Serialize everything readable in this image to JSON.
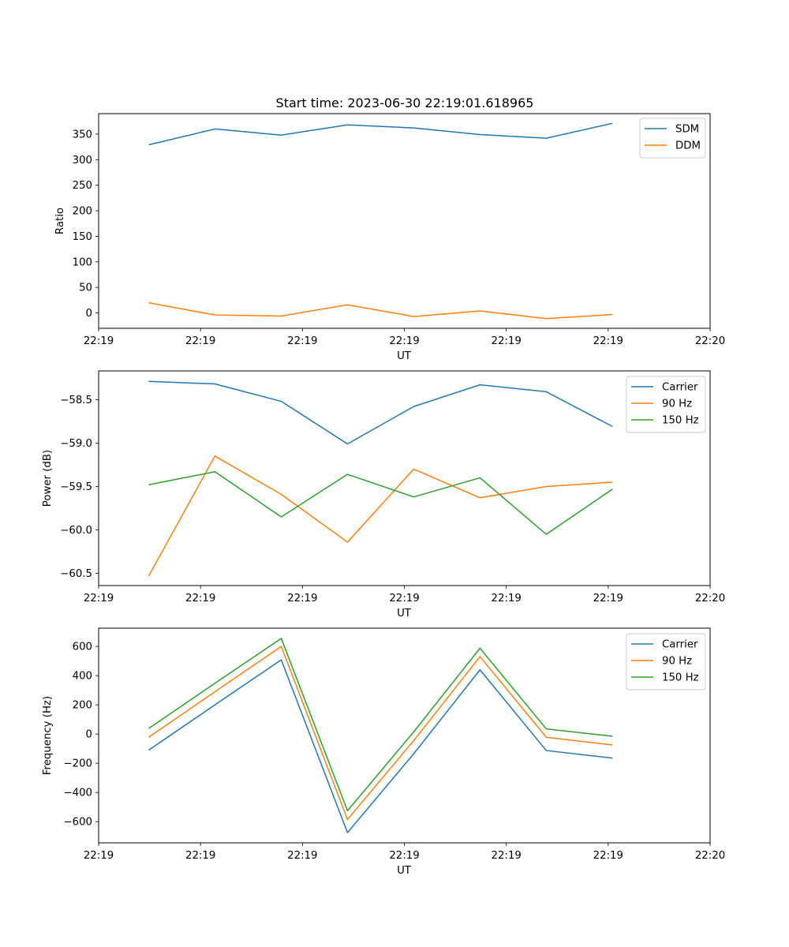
{
  "chart_data": [
    {
      "type": "line",
      "title": "Start time: 2023-06-30 22:19:01.618965",
      "xlabel": "UT",
      "ylabel": "Ratio",
      "xlim": [
        0,
        9
      ],
      "x_tick_values": [
        0,
        1.5,
        3,
        4.5,
        6,
        7.5,
        9
      ],
      "x_tick_labels": [
        "22:19",
        "22:19",
        "22:19",
        "22:19",
        "22:19",
        "22:19",
        "22:20"
      ],
      "ylim": [
        -30,
        390
      ],
      "y_ticks": [
        0,
        50,
        100,
        150,
        200,
        250,
        300,
        350
      ],
      "y_tick_labels": [
        "0",
        "50",
        "100",
        "150",
        "200",
        "250",
        "300",
        "350"
      ],
      "x": [
        0.737,
        1.712,
        2.688,
        3.663,
        4.638,
        5.613,
        6.589,
        7.564
      ],
      "series": [
        {
          "name": "SDM",
          "color": "#1f77b4",
          "values": [
            329,
            360,
            348,
            368,
            362,
            349,
            342,
            371
          ]
        },
        {
          "name": "DDM",
          "color": "#ff7f0e",
          "values": [
            20,
            -4,
            -6,
            16,
            -7,
            4,
            -11,
            -3
          ]
        }
      ],
      "legend": "upper right",
      "grid": false
    },
    {
      "type": "line",
      "title": "",
      "xlabel": "UT",
      "ylabel": "Power (dB)",
      "xlim": [
        0,
        9
      ],
      "x_tick_values": [
        0,
        1.5,
        3,
        4.5,
        6,
        7.5,
        9
      ],
      "x_tick_labels": [
        "22:19",
        "22:19",
        "22:19",
        "22:19",
        "22:19",
        "22:19",
        "22:20"
      ],
      "ylim": [
        -60.64,
        -58.17
      ],
      "y_ticks": [
        -60.5,
        -60.0,
        -59.5,
        -59.0,
        -58.5
      ],
      "y_tick_labels": [
        "−60.5",
        "−60.0",
        "−59.5",
        "−59.0",
        "−58.5"
      ],
      "x": [
        0.737,
        1.712,
        2.688,
        3.663,
        4.638,
        5.613,
        6.589,
        7.564
      ],
      "series": [
        {
          "name": "Carrier",
          "color": "#1f77b4",
          "values": [
            -58.29,
            -58.32,
            -58.52,
            -59.01,
            -58.58,
            -58.33,
            -58.41,
            -58.81
          ]
        },
        {
          "name": "90 Hz",
          "color": "#ff7f0e",
          "values": [
            -60.53,
            -59.15,
            -59.59,
            -60.14,
            -59.3,
            -59.63,
            -59.5,
            -59.45
          ]
        },
        {
          "name": "150 Hz",
          "color": "#2ca02c",
          "values": [
            -59.48,
            -59.33,
            -59.85,
            -59.36,
            -59.62,
            -59.4,
            -60.05,
            -59.53
          ]
        }
      ],
      "legend": "upper right",
      "grid": false
    },
    {
      "type": "line",
      "title": "",
      "xlabel": "UT",
      "ylabel": "Frequency (Hz)",
      "xlim": [
        0,
        9
      ],
      "x_tick_values": [
        0,
        1.5,
        3,
        4.5,
        6,
        7.5,
        9
      ],
      "x_tick_labels": [
        "22:19",
        "22:19",
        "22:19",
        "22:19",
        "22:19",
        "22:19",
        "22:20"
      ],
      "ylim": [
        -745,
        725
      ],
      "y_ticks": [
        -600,
        -400,
        -200,
        0,
        200,
        400,
        600
      ],
      "y_tick_labels": [
        "−600",
        "−400",
        "−200",
        "0",
        "200",
        "400",
        "600"
      ],
      "x": [
        0.737,
        1.712,
        2.688,
        3.663,
        4.638,
        5.613,
        6.589,
        7.564
      ],
      "series": [
        {
          "name": "Carrier",
          "color": "#1f77b4",
          "values": [
            -110,
            200,
            508,
            -675,
            -135,
            440,
            -113,
            -165
          ]
        },
        {
          "name": "90 Hz",
          "color": "#ff7f0e",
          "values": [
            -22,
            290,
            600,
            -585,
            -45,
            530,
            -22,
            -75
          ]
        },
        {
          "name": "150 Hz",
          "color": "#2ca02c",
          "values": [
            38,
            348,
            655,
            -525,
            15,
            588,
            35,
            -15
          ]
        }
      ],
      "legend": "upper right",
      "grid": false
    }
  ]
}
